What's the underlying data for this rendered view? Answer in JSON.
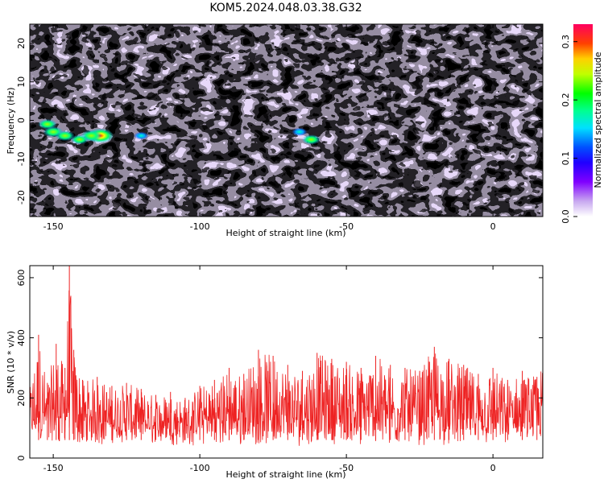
{
  "title": "KOM5.2024.048.03.38.G32",
  "colors": {
    "snr_line": "#ee2222",
    "colormap": [
      "#ffffff",
      "#c8a8f0",
      "#8000ff",
      "#4400ff",
      "#0000ff",
      "#00c0ff",
      "#00ffb0",
      "#00ff00",
      "#c0ff00",
      "#ffff00",
      "#ff8000",
      "#ff0000",
      "#ff0060"
    ]
  },
  "chart_data": [
    {
      "type": "heatmap",
      "xlabel": "Height of straight line (km)",
      "ylabel": "Frequency (Hz)",
      "xlim": [
        -158,
        17
      ],
      "ylim": [
        -25,
        25
      ],
      "xticks": [
        -150,
        -100,
        -50,
        0
      ],
      "yticks": [
        -20,
        -10,
        0,
        10,
        20
      ],
      "colorbar": {
        "label": "Normalized spectral amplitude",
        "range": [
          0,
          0.33
        ],
        "ticks": [
          "0.0",
          "0.1",
          "0.2",
          "0.3"
        ]
      },
      "hotspots": [
        {
          "x": -134,
          "y": -4,
          "value": 0.32
        },
        {
          "x": -137,
          "y": -4,
          "value": 0.22
        },
        {
          "x": -150,
          "y": -3,
          "value": 0.2
        },
        {
          "x": -146,
          "y": -4,
          "value": 0.19
        },
        {
          "x": -152,
          "y": -1,
          "value": 0.18
        },
        {
          "x": -141,
          "y": -5,
          "value": 0.16
        },
        {
          "x": -62,
          "y": -5,
          "value": 0.17
        },
        {
          "x": -66,
          "y": -3,
          "value": 0.12
        },
        {
          "x": -120,
          "y": -4,
          "value": 0.11
        }
      ]
    },
    {
      "type": "line",
      "xlabel": "Height of straight line (km)",
      "ylabel": "SNR (10 * v/v)",
      "xlim": [
        -158,
        17
      ],
      "ylim": [
        0,
        640
      ],
      "xticks": [
        -150,
        -100,
        -50,
        0
      ],
      "yticks": [
        0,
        200,
        400,
        600
      ],
      "series": [
        {
          "x": [
            -158,
            -155,
            -152,
            -149,
            -146,
            -144.5,
            -143,
            -140,
            -135,
            -130,
            -125,
            -120,
            -115,
            -110,
            -105,
            -100,
            -95,
            -90,
            -85,
            -80,
            -75,
            -70,
            -65,
            -60,
            -55,
            -50,
            -45,
            -40,
            -35,
            -30,
            -25,
            -20,
            -15,
            -10,
            -5,
            0,
            5,
            10,
            15,
            17
          ],
          "y": [
            230,
            410,
            250,
            380,
            300,
            640,
            360,
            260,
            270,
            240,
            250,
            230,
            210,
            220,
            200,
            240,
            260,
            300,
            280,
            360,
            340,
            310,
            290,
            350,
            330,
            320,
            300,
            340,
            310,
            300,
            290,
            370,
            330,
            310,
            280,
            300,
            260,
            290,
            270,
            310
          ]
        }
      ]
    }
  ]
}
